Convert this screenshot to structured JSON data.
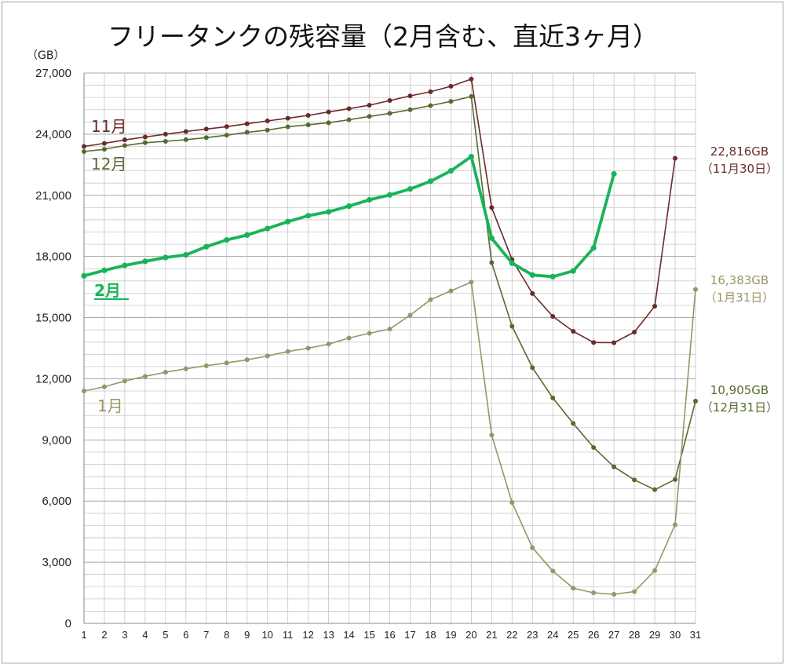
{
  "chart_data": {
    "type": "line",
    "title": "フリータンクの残容量（2月含む、直近3ヶ月）",
    "ylabel": "（GB）",
    "xlabel": "",
    "ylim": [
      0,
      27000
    ],
    "xlim": [
      1,
      31
    ],
    "yticks": [
      0,
      3000,
      6000,
      9000,
      12000,
      15000,
      18000,
      21000,
      24000,
      27000
    ],
    "ytick_labels": [
      "0",
      "3,000",
      "6,000",
      "9,000",
      "12,000",
      "15,000",
      "18,000",
      "21,000",
      "24,000",
      "27,000"
    ],
    "xticks": [
      1,
      2,
      3,
      4,
      5,
      6,
      7,
      8,
      9,
      10,
      11,
      12,
      13,
      14,
      15,
      16,
      17,
      18,
      19,
      20,
      21,
      22,
      23,
      24,
      25,
      26,
      27,
      28,
      29,
      30,
      31
    ],
    "grid": true,
    "series": [
      {
        "name": "11月",
        "color": "#6b2a2a",
        "x": [
          1,
          2,
          3,
          4,
          5,
          6,
          7,
          8,
          9,
          10,
          11,
          12,
          13,
          14,
          15,
          16,
          17,
          18,
          19,
          20,
          21,
          22,
          23,
          24,
          25,
          26,
          27,
          28,
          29,
          30
        ],
        "values": [
          23400,
          23550,
          23720,
          23860,
          24000,
          24130,
          24250,
          24370,
          24510,
          24650,
          24780,
          24920,
          25090,
          25250,
          25420,
          25650,
          25880,
          26080,
          26350,
          26700,
          20400,
          17850,
          16180,
          15060,
          14330,
          13780,
          13770,
          14290,
          15560,
          22816
        ]
      },
      {
        "name": "12月",
        "color": "#556b2f",
        "x": [
          1,
          2,
          3,
          4,
          5,
          6,
          7,
          8,
          9,
          10,
          11,
          12,
          13,
          14,
          15,
          16,
          17,
          18,
          19,
          20,
          21,
          22,
          23,
          24,
          25,
          26,
          27,
          28,
          29,
          30,
          31
        ],
        "values": [
          23150,
          23260,
          23440,
          23580,
          23650,
          23730,
          23830,
          23950,
          24090,
          24200,
          24360,
          24460,
          24560,
          24710,
          24870,
          25020,
          25200,
          25400,
          25610,
          25850,
          17700,
          14580,
          12540,
          11060,
          9810,
          8630,
          7680,
          7040,
          6560,
          7060,
          10905
        ]
      },
      {
        "name": "2月",
        "color": "#19b35a",
        "x": [
          1,
          2,
          3,
          4,
          5,
          6,
          7,
          8,
          9,
          10,
          11,
          12,
          13,
          14,
          15,
          16,
          17,
          18,
          19,
          20,
          21,
          22,
          23,
          24,
          25,
          26,
          27
        ],
        "values": [
          17050,
          17320,
          17560,
          17760,
          17950,
          18080,
          18480,
          18810,
          19050,
          19370,
          19710,
          20000,
          20190,
          20470,
          20780,
          21020,
          21310,
          21690,
          22200,
          22900,
          18900,
          17670,
          17090,
          17010,
          17290,
          18420,
          22050
        ]
      },
      {
        "name": "1月",
        "color": "#9a9467",
        "x": [
          1,
          2,
          3,
          4,
          5,
          6,
          7,
          8,
          9,
          10,
          11,
          12,
          13,
          14,
          15,
          16,
          17,
          18,
          19,
          20,
          21,
          22,
          23,
          24,
          25,
          26,
          27,
          28,
          29,
          30,
          31
        ],
        "values": [
          11400,
          11610,
          11890,
          12120,
          12320,
          12490,
          12640,
          12780,
          12930,
          13120,
          13340,
          13500,
          13700,
          14000,
          14230,
          14440,
          15120,
          15880,
          16310,
          16740,
          9240,
          5930,
          3710,
          2570,
          1730,
          1500,
          1430,
          1560,
          2590,
          4840,
          16383
        ]
      }
    ],
    "annotations": [
      {
        "series": "11月",
        "value": "22,816GB",
        "date": "（11月30日）"
      },
      {
        "series": "1月",
        "value": "16,383GB",
        "date": "（1月31日）"
      },
      {
        "series": "12月",
        "value": "10,905GB",
        "date": "（12月31日）"
      }
    ]
  }
}
